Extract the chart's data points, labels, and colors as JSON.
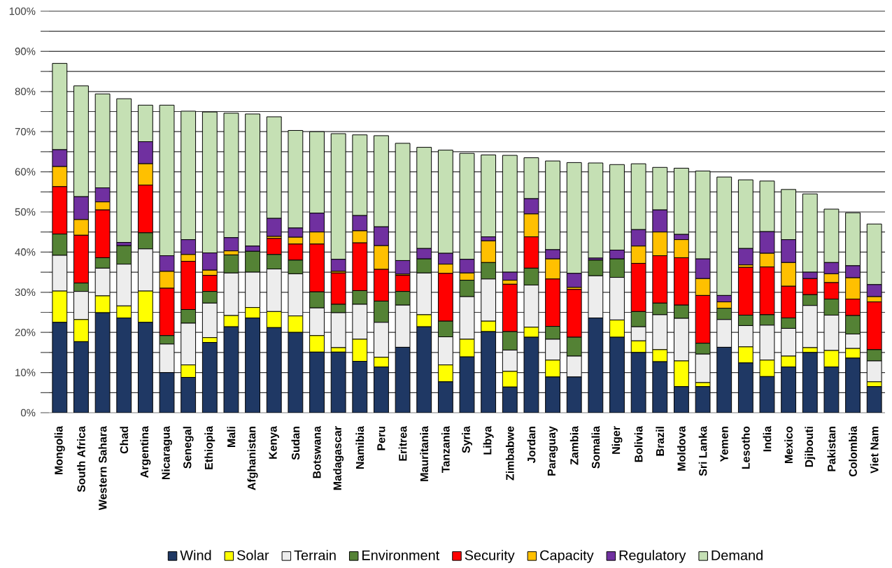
{
  "chart_data": {
    "type": "bar",
    "stacked": true,
    "categories": [
      "Mongolia",
      "South Africa",
      "Western Sahara",
      "Chad",
      "Argentina",
      "Nicaragua",
      "Senegal",
      "Ethiopia",
      "Mali",
      "Afghanistan",
      "Kenya",
      "Sudan",
      "Botswana",
      "Madagascar",
      "Namibia",
      "Peru",
      "Eritrea",
      "Mauritania",
      "Tanzania",
      "Syria",
      "Libya",
      "Zimbabwe",
      "Jordan",
      "Paraguay",
      "Zambia",
      "Somalia",
      "Niger",
      "Bolivia",
      "Brazil",
      "Moldova",
      "Sri Lanka",
      "Yemen",
      "Lesotho",
      "India",
      "Mexico",
      "Djibouti",
      "Pakistan",
      "Colombia",
      "Viet Nam"
    ],
    "series": [
      {
        "name": "Wind",
        "color": "#1f3864",
        "values": [
          22.5,
          17.7,
          24.9,
          23.6,
          22.5,
          10.0,
          8.8,
          17.5,
          21.4,
          23.6,
          21.2,
          20.0,
          15.1,
          15.1,
          12.8,
          11.4,
          16.3,
          21.4,
          7.7,
          13.9,
          20.2,
          6.4,
          18.8,
          8.9,
          8.9,
          23.6,
          18.8,
          15.0,
          12.7,
          6.5,
          6.5,
          16.3,
          12.4,
          9.0,
          11.4,
          15.0,
          11.4,
          13.6,
          6.5
        ]
      },
      {
        "name": "Solar",
        "color": "#ffff00",
        "values": [
          7.8,
          5.5,
          4.2,
          3.0,
          7.8,
          0,
          3.1,
          1.2,
          2.8,
          2.6,
          4.0,
          4.1,
          4.1,
          1.1,
          5.5,
          2.4,
          0,
          3.0,
          4.2,
          4.4,
          2.6,
          3.9,
          2.5,
          4.2,
          0,
          0,
          4.3,
          2.9,
          3.0,
          6.4,
          1.0,
          0,
          4.0,
          4.1,
          2.7,
          1.2,
          4.1,
          2.4,
          1.2
        ]
      },
      {
        "name": "Terrain",
        "color": "#ededed",
        "values": [
          8.9,
          7.0,
          6.9,
          10.4,
          10.5,
          7.1,
          10.4,
          8.6,
          10.6,
          8.8,
          10.6,
          10.5,
          6.9,
          8.7,
          8.7,
          8.7,
          10.5,
          10.4,
          7.0,
          10.6,
          10.5,
          5.3,
          10.5,
          5.2,
          5.2,
          10.5,
          10.6,
          3.5,
          8.7,
          10.6,
          7.1,
          6.9,
          5.3,
          8.7,
          6.9,
          10.5,
          8.8,
          3.6,
          5.2
        ]
      },
      {
        "name": "Environment",
        "color": "#548235",
        "values": [
          5.3,
          2.1,
          2.6,
          4.6,
          4.0,
          2.1,
          3.4,
          2.9,
          4.5,
          5.2,
          3.6,
          3.4,
          4.0,
          2.1,
          3.4,
          5.3,
          3.4,
          3.5,
          3.9,
          4.1,
          4.1,
          4.6,
          4.2,
          3.2,
          4.7,
          3.9,
          4.6,
          3.8,
          2.9,
          3.3,
          2.7,
          2.8,
          2.6,
          2.6,
          2.6,
          2.7,
          4.0,
          4.6,
          2.8
        ]
      },
      {
        "name": "Security",
        "color": "#ff0000",
        "values": [
          11.8,
          11.9,
          11.9,
          0,
          11.9,
          11.8,
          12.0,
          4.0,
          0,
          0,
          4.0,
          4.0,
          11.9,
          7.8,
          11.9,
          7.9,
          4.0,
          0,
          11.9,
          0,
          0,
          11.8,
          7.8,
          11.8,
          11.9,
          0,
          0,
          12.0,
          11.8,
          11.8,
          11.9,
          0,
          11.9,
          11.9,
          7.9,
          4.0,
          4.1,
          4.1,
          11.9
        ]
      },
      {
        "name": "Capacity",
        "color": "#ffc000",
        "values": [
          5.0,
          3.9,
          2.0,
          0,
          5.3,
          4.2,
          1.7,
          1.3,
          1.0,
          0,
          0.5,
          1.7,
          3.0,
          0.4,
          3.0,
          5.9,
          0.3,
          0,
          2.3,
          1.8,
          5.4,
          1.0,
          5.7,
          5.0,
          0.5,
          0,
          0,
          4.3,
          5.9,
          4.5,
          4.2,
          1.6,
          0.6,
          3.4,
          5.9,
          0,
          2.2,
          5.3,
          1.3
        ]
      },
      {
        "name": "Regulatory",
        "color": "#7030a0",
        "values": [
          4.2,
          5.7,
          3.5,
          0.8,
          5.5,
          3.9,
          3.7,
          4.3,
          3.3,
          1.3,
          4.5,
          2.3,
          4.7,
          3.0,
          3.8,
          4.7,
          3.4,
          2.6,
          2.7,
          3.4,
          1.0,
          2.0,
          3.8,
          2.3,
          3.5,
          0.5,
          2.2,
          4.1,
          5.5,
          1.3,
          4.9,
          1.6,
          4.1,
          5.4,
          5.7,
          1.6,
          2.8,
          3.0,
          3.0
        ]
      },
      {
        "name": "Demand",
        "color": "#c5e0b4",
        "values": [
          21.5,
          27.6,
          23.4,
          35.8,
          9.1,
          37.5,
          32.0,
          35.1,
          31.0,
          32.9,
          25.3,
          24.3,
          20.3,
          31.3,
          20.1,
          22.7,
          29.2,
          25.2,
          25.7,
          26.4,
          20.4,
          29.1,
          10.2,
          22.1,
          27.6,
          23.7,
          21.3,
          16.4,
          10.6,
          16.5,
          21.9,
          29.5,
          17.1,
          12.6,
          12.5,
          19.5,
          13.3,
          13.2,
          15.1
        ]
      }
    ],
    "ylim": [
      0,
      100
    ],
    "yticks": [
      {
        "value": 0,
        "label": "0%"
      },
      {
        "value": 5,
        "label": null
      },
      {
        "value": 10,
        "label": "10%"
      },
      {
        "value": 15,
        "label": null
      },
      {
        "value": 20,
        "label": "20%"
      },
      {
        "value": 25,
        "label": null
      },
      {
        "value": 30,
        "label": "30%"
      },
      {
        "value": 35,
        "label": null
      },
      {
        "value": 40,
        "label": "40%"
      },
      {
        "value": 45,
        "label": null
      },
      {
        "value": 50,
        "label": "50%"
      },
      {
        "value": 55,
        "label": null
      },
      {
        "value": 60,
        "label": "60%"
      },
      {
        "value": 65,
        "label": null
      },
      {
        "value": 70,
        "label": "70%"
      },
      {
        "value": 75,
        "label": null
      },
      {
        "value": 80,
        "label": "80%"
      },
      {
        "value": 85,
        "label": null
      },
      {
        "value": 90,
        "label": "90%"
      },
      {
        "value": 95,
        "label": null
      },
      {
        "value": 100,
        "label": "100%"
      }
    ],
    "grid": "y",
    "legend": "bottom"
  }
}
